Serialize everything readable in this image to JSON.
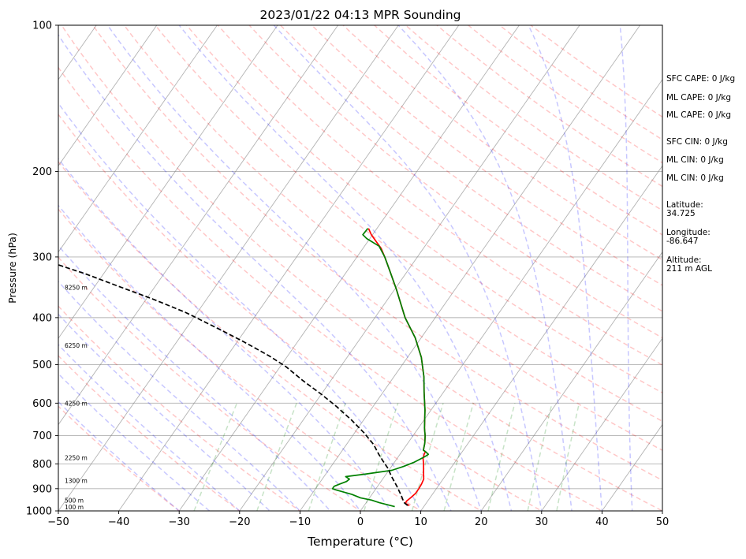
{
  "chart_data": {
    "type": "line",
    "subtype": "skew-t log-p sounding",
    "title": "2023/01/22 04:13 MPR Sounding",
    "xlabel": "Temperature (°C)",
    "ylabel": "Pressure (hPa)",
    "xlim": [
      -50,
      50
    ],
    "ylim": [
      1000,
      100
    ],
    "y_scale": "log",
    "grid": true,
    "x_ticks": [
      -50,
      -40,
      -30,
      -20,
      -10,
      0,
      10,
      20,
      30,
      40,
      50
    ],
    "y_ticks": [
      100,
      200,
      300,
      400,
      500,
      600,
      700,
      800,
      900,
      1000
    ],
    "height_labels": [
      {
        "text": "100 m",
        "pressure": 985
      },
      {
        "text": "500 m",
        "pressure": 955
      },
      {
        "text": "1300 m",
        "pressure": 870
      },
      {
        "text": "2250 m",
        "pressure": 780
      },
      {
        "text": "4250 m",
        "pressure": 603
      },
      {
        "text": "6250 m",
        "pressure": 458
      },
      {
        "text": "8250 m",
        "pressure": 348
      }
    ],
    "series": [
      {
        "name": "",
        "role": "temperature",
        "color": "#ff0000",
        "style": "solid",
        "points": [
          [
            7.5,
            975
          ],
          [
            6.6,
            965
          ],
          [
            6.5,
            955
          ],
          [
            6.8,
            940
          ],
          [
            7.1,
            920
          ],
          [
            7.1,
            900
          ],
          [
            7.0,
            880
          ],
          [
            6.8,
            860
          ],
          [
            6.2,
            840
          ],
          [
            5.6,
            820
          ],
          [
            5.0,
            800
          ],
          [
            4.3,
            780
          ],
          [
            4.0,
            765
          ],
          [
            3.9,
            755
          ],
          [
            3.4,
            750
          ],
          [
            2.8,
            725
          ],
          [
            2.0,
            700
          ],
          [
            1.0,
            675
          ],
          [
            -1.0,
            620
          ],
          [
            -3.2,
            570
          ],
          [
            -5.0,
            530
          ],
          [
            -7.7,
            483
          ],
          [
            -11.0,
            440
          ],
          [
            -15.0,
            400
          ],
          [
            -19.7,
            350
          ],
          [
            -23.0,
            320
          ],
          [
            -25.4,
            300
          ],
          [
            -27.0,
            288
          ],
          [
            -28.4,
            280
          ],
          [
            -30.2,
            270
          ],
          [
            -31.4,
            262
          ]
        ]
      },
      {
        "name": "",
        "role": "dewpoint",
        "color": "#008000",
        "style": "solid",
        "points": [
          [
            5.2,
            980
          ],
          [
            2.2,
            962
          ],
          [
            0.6,
            950
          ],
          [
            -1.5,
            940
          ],
          [
            -3.3,
            925
          ],
          [
            -6.5,
            905
          ],
          [
            -7.2,
            900
          ],
          [
            -7.2,
            890
          ],
          [
            -6.5,
            880
          ],
          [
            -5.7,
            870
          ],
          [
            -5.5,
            860
          ],
          [
            -6.4,
            850
          ],
          [
            -3.5,
            840
          ],
          [
            0.5,
            825
          ],
          [
            2.0,
            810
          ],
          [
            3.2,
            795
          ],
          [
            4.3,
            775
          ],
          [
            4.7,
            765
          ],
          [
            3.9,
            755
          ],
          [
            3.4,
            750
          ],
          [
            2.8,
            725
          ],
          [
            2.0,
            700
          ],
          [
            1.0,
            675
          ],
          [
            -1.0,
            620
          ],
          [
            -3.2,
            570
          ],
          [
            -5.0,
            530
          ],
          [
            -7.7,
            483
          ],
          [
            -11.0,
            440
          ],
          [
            -15.0,
            400
          ],
          [
            -19.7,
            350
          ],
          [
            -23.0,
            320
          ],
          [
            -25.4,
            300
          ],
          [
            -27.6,
            285
          ],
          [
            -30.5,
            275
          ],
          [
            -31.6,
            270
          ],
          [
            -31.5,
            262
          ]
        ]
      },
      {
        "name": "",
        "role": "parcel profile",
        "color": "#000000",
        "style": "dashed",
        "points": [
          [
            7.2,
            975
          ],
          [
            6.2,
            960
          ],
          [
            5.0,
            930
          ],
          [
            3.2,
            890
          ],
          [
            1.2,
            850
          ],
          [
            -0.5,
            815
          ],
          [
            -2.0,
            790
          ],
          [
            -3.5,
            765
          ],
          [
            -5.5,
            730
          ],
          [
            -8.5,
            690
          ],
          [
            -12.0,
            650
          ],
          [
            -16.0,
            610
          ],
          [
            -20.0,
            575
          ],
          [
            -24.5,
            540
          ],
          [
            -29.0,
            505
          ],
          [
            -33.0,
            480
          ],
          [
            -39.0,
            448
          ],
          [
            -45.0,
            420
          ],
          [
            -52.0,
            390
          ],
          [
            -59.0,
            366
          ],
          [
            -66.0,
            345
          ],
          [
            -73.0,
            325
          ],
          [
            -80.0,
            308
          ],
          [
            -88.0,
            290
          ],
          [
            -96.0,
            275
          ],
          [
            -100.5,
            266
          ]
        ]
      }
    ],
    "background_lines": {
      "isotherms": {
        "color": "#808080",
        "style": "solid"
      },
      "dry_adiabats": {
        "color": "#ff0000",
        "style": "dashed"
      },
      "moist_adiabats": {
        "color": "#0000ff",
        "style": "dashed"
      },
      "mixing_ratio_lines": {
        "color": "#008000",
        "style": "dashed"
      }
    }
  },
  "info_panel": {
    "sfc_cape": "SFC CAPE: 0 J/kg",
    "ml_cape_1": "ML CAPE: 0 J/kg",
    "ml_cape_2": "ML CAPE: 0 J/kg",
    "sfc_cin": "SFC CIN: 0 J/kg",
    "ml_cin_1": "ML CIN: 0 J/kg",
    "ml_cin_2": "ML CIN: 0 J/kg",
    "latitude_label": "Latitude:",
    "latitude_value": "34.725",
    "longitude_label": "Longitude:",
    "longitude_value": "-86.647",
    "altitude_label": "Altitude:",
    "altitude_value": "211 m AGL"
  }
}
